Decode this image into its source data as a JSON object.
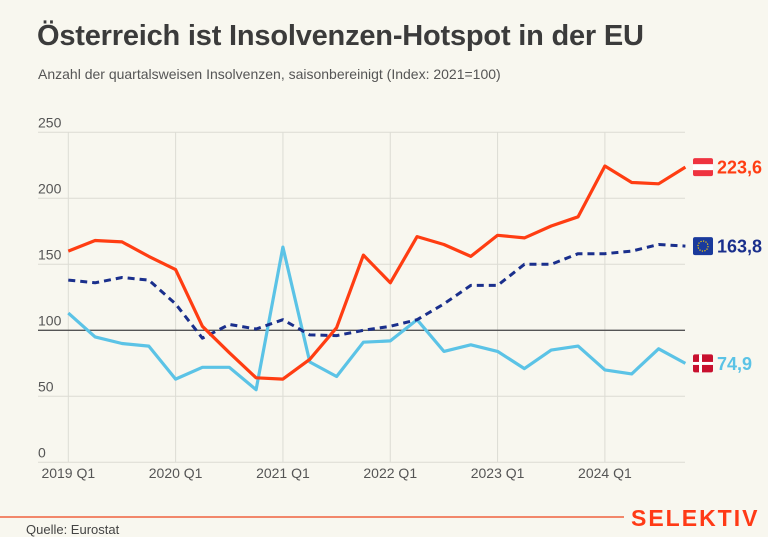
{
  "chart_data": {
    "type": "line",
    "title": "Österreich ist Insolvenzen-Hotspot in der EU",
    "subtitle": "Anzahl der quartalsweisen Insolvenzen, saisonbereinigt (Index: 2021=100)",
    "x": [
      "2019 Q1",
      "2019 Q2",
      "2019 Q3",
      "2019 Q4",
      "2020 Q1",
      "2020 Q2",
      "2020 Q3",
      "2020 Q4",
      "2021 Q1",
      "2021 Q2",
      "2021 Q3",
      "2021 Q4",
      "2022 Q1",
      "2022 Q2",
      "2022 Q3",
      "2022 Q4",
      "2023 Q1",
      "2023 Q2",
      "2023 Q3",
      "2023 Q4",
      "2024 Q1",
      "2024 Q2",
      "2024 Q3",
      "2024 Q4"
    ],
    "x_tick_labels": [
      "2019 Q1",
      "2020 Q1",
      "2021 Q1",
      "2022 Q1",
      "2023 Q1",
      "2024 Q1"
    ],
    "y_ticks": [
      0,
      50,
      100,
      150,
      200,
      250
    ],
    "ylim": [
      0,
      250
    ],
    "reference_line": 100,
    "grid": true,
    "series": [
      {
        "key": "austria",
        "flag": "austria-flag",
        "label": "223,6",
        "color": "#ff3d12",
        "dashed": false,
        "values": [
          160,
          168,
          167,
          156,
          146,
          103,
          83,
          64,
          63,
          78,
          102,
          157,
          136,
          171,
          165,
          156,
          172,
          170,
          179,
          186,
          224.5,
          212,
          211,
          223.6
        ]
      },
      {
        "key": "eu",
        "flag": "eu-flag",
        "label": "163,8",
        "color": "#1a2f8c",
        "dashed": true,
        "values": [
          138,
          136,
          140,
          138,
          120,
          94,
          104.5,
          101,
          108,
          96.5,
          96,
          100,
          103,
          108,
          120,
          134,
          134,
          150,
          150,
          158,
          158,
          160,
          165,
          163.8
        ]
      },
      {
        "key": "denmark",
        "flag": "denmark-flag",
        "label": "74,9",
        "color": "#5bc3e6",
        "dashed": false,
        "values": [
          113,
          95,
          90,
          88,
          63,
          72,
          72,
          55,
          163,
          76,
          65,
          91,
          92,
          108,
          84,
          89,
          84,
          71,
          85,
          88,
          70,
          67,
          86,
          74.9
        ]
      }
    ]
  },
  "footer": {
    "source": "Quelle: Eurostat",
    "brand": "SELEKTIV"
  },
  "colors": {
    "background": "#f8f7ef",
    "brand": "#ff3a16"
  }
}
